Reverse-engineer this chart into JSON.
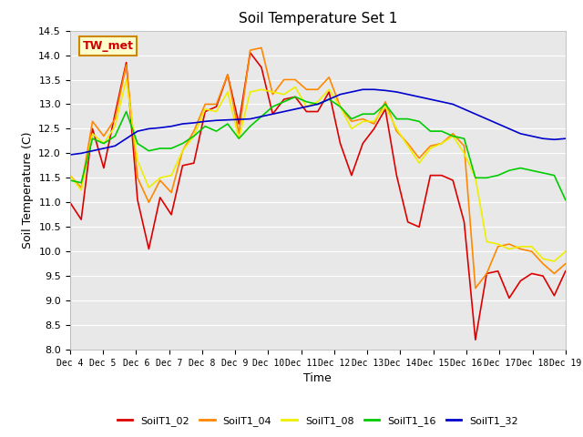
{
  "title": "Soil Temperature Set 1",
  "xlabel": "Time",
  "ylabel": "Soil Temperature (C)",
  "ylim": [
    8.0,
    14.5
  ],
  "yticks": [
    8.0,
    8.5,
    9.0,
    9.5,
    10.0,
    10.5,
    11.0,
    11.5,
    12.0,
    12.5,
    13.0,
    13.5,
    14.0,
    14.5
  ],
  "xtick_labels": [
    "Dec 4",
    "Dec 5",
    "Dec 6",
    "Dec 7",
    "Dec 8",
    "Dec 9",
    "Dec 10",
    "Dec 11",
    "Dec 12",
    "Dec 13",
    "Dec 14",
    "Dec 15",
    "Dec 16",
    "Dec 17",
    "Dec 18",
    "Dec 19"
  ],
  "colors": {
    "SoilT1_02": "#dd0000",
    "SoilT1_04": "#ff8800",
    "SoilT1_08": "#eeee00",
    "SoilT1_16": "#00cc00",
    "SoilT1_32": "#0000cc"
  },
  "linewidth": 1.2,
  "fig_bg": "#ffffff",
  "plot_bg_color": "#e8e8e8",
  "annotation_box": {
    "text": "TW_met",
    "fontsize": 9,
    "facecolor": "#ffffcc",
    "edgecolor": "#cc8800",
    "textcolor": "#cc0000"
  },
  "SoilT1_02": [
    11.0,
    10.65,
    12.5,
    11.7,
    12.8,
    13.85,
    11.05,
    10.05,
    11.1,
    10.75,
    11.75,
    11.8,
    12.85,
    12.95,
    13.6,
    12.6,
    14.05,
    13.75,
    12.8,
    13.1,
    13.15,
    12.85,
    12.85,
    13.25,
    12.2,
    11.55,
    12.2,
    12.5,
    12.9,
    11.55,
    10.6,
    10.5,
    11.55,
    11.55,
    11.45,
    10.6,
    8.2,
    9.55,
    9.6,
    9.05,
    9.4,
    9.55,
    9.5,
    9.1,
    9.6
  ],
  "SoilT1_04": [
    11.55,
    11.3,
    12.65,
    12.35,
    12.7,
    13.8,
    11.5,
    11.0,
    11.45,
    11.2,
    12.05,
    12.45,
    13.0,
    13.0,
    13.6,
    12.4,
    14.1,
    14.15,
    13.2,
    13.5,
    13.5,
    13.3,
    13.3,
    13.55,
    12.95,
    12.65,
    12.7,
    12.6,
    13.05,
    12.45,
    12.2,
    11.9,
    12.15,
    12.2,
    12.4,
    12.15,
    9.25,
    9.55,
    10.1,
    10.15,
    10.05,
    10.0,
    9.75,
    9.55,
    9.75
  ],
  "SoilT1_08": [
    11.55,
    11.25,
    12.4,
    12.2,
    12.55,
    13.5,
    11.85,
    11.3,
    11.5,
    11.55,
    12.05,
    12.35,
    12.9,
    12.85,
    13.25,
    12.3,
    13.25,
    13.3,
    13.25,
    13.2,
    13.35,
    12.95,
    13.05,
    13.3,
    12.95,
    12.5,
    12.65,
    12.65,
    12.95,
    12.5,
    12.15,
    11.8,
    12.1,
    12.2,
    12.35,
    12.0,
    11.5,
    10.2,
    10.15,
    10.05,
    10.1,
    10.1,
    9.85,
    9.8,
    10.0
  ],
  "SoilT1_16": [
    11.45,
    11.4,
    12.3,
    12.2,
    12.35,
    12.85,
    12.2,
    12.05,
    12.1,
    12.1,
    12.2,
    12.35,
    12.55,
    12.45,
    12.6,
    12.3,
    12.55,
    12.75,
    12.95,
    13.05,
    13.15,
    13.05,
    13.0,
    13.1,
    12.95,
    12.7,
    12.8,
    12.8,
    13.0,
    12.7,
    12.7,
    12.65,
    12.45,
    12.45,
    12.35,
    12.3,
    11.5,
    11.5,
    11.55,
    11.65,
    11.7,
    11.65,
    11.6,
    11.55,
    11.05
  ],
  "SoilT1_32": [
    11.97,
    12.0,
    12.05,
    12.1,
    12.15,
    12.3,
    12.45,
    12.5,
    12.52,
    12.55,
    12.6,
    12.62,
    12.65,
    12.67,
    12.68,
    12.69,
    12.7,
    12.75,
    12.8,
    12.85,
    12.9,
    12.95,
    13.0,
    13.1,
    13.2,
    13.25,
    13.3,
    13.3,
    13.28,
    13.25,
    13.2,
    13.15,
    13.1,
    13.05,
    13.0,
    12.9,
    12.8,
    12.7,
    12.6,
    12.5,
    12.4,
    12.35,
    12.3,
    12.28,
    12.3
  ]
}
